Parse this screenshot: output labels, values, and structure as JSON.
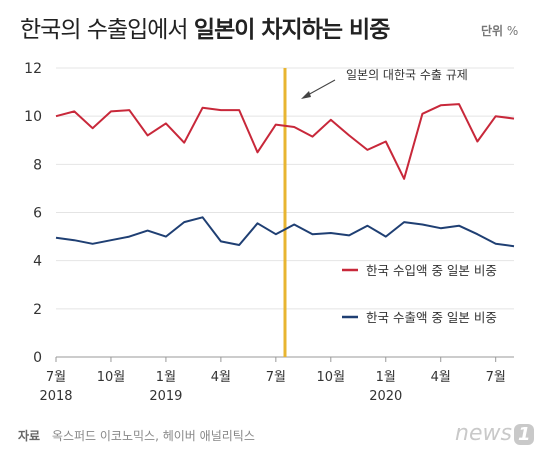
{
  "header": {
    "title_prefix": "한국의 수출입에서",
    "title_emphasis": "일본이 차지하는 비중",
    "unit_label": "단위",
    "unit_value": "%"
  },
  "footer": {
    "source_label": "자료",
    "source_text": "옥스퍼드 이코노믹스, 헤이버 애널리틱스",
    "logo_text": "news",
    "logo_badge": "1"
  },
  "chart_data": {
    "type": "line",
    "x": [
      "2018-07",
      "2018-08",
      "2018-09",
      "2018-10",
      "2018-11",
      "2018-12",
      "2019-01",
      "2019-02",
      "2019-03",
      "2019-04",
      "2019-05",
      "2019-06",
      "2019-07",
      "2019-08",
      "2019-09",
      "2019-10",
      "2019-11",
      "2019-12",
      "2020-01",
      "2020-02",
      "2020-03",
      "2020-04",
      "2020-05",
      "2020-06",
      "2020-07",
      "2020-08"
    ],
    "series": [
      {
        "name": "한국 수입액 중 일본 비중",
        "color": "#c8283a",
        "values": [
          10.0,
          10.2,
          9.5,
          10.2,
          10.25,
          9.2,
          9.7,
          8.9,
          10.35,
          10.25,
          10.25,
          8.5,
          9.65,
          9.55,
          9.15,
          9.85,
          9.2,
          8.6,
          8.95,
          7.4,
          10.1,
          10.45,
          10.5,
          8.95,
          10.0,
          9.9
        ]
      },
      {
        "name": "한국 수출액 중 일본 비중",
        "color": "#1f3f73",
        "values": [
          4.95,
          4.85,
          4.7,
          4.85,
          5.0,
          5.25,
          5.0,
          5.6,
          5.8,
          4.8,
          4.65,
          5.55,
          5.1,
          5.5,
          5.1,
          5.15,
          5.05,
          5.45,
          5.0,
          5.6,
          5.5,
          5.35,
          5.45,
          5.1,
          4.7,
          4.6
        ]
      }
    ],
    "y_ticks": [
      "0",
      "2",
      "4",
      "6",
      "8",
      "10",
      "12"
    ],
    "ylim": [
      0,
      12
    ],
    "x_tick_labels": [
      {
        "month": "7월",
        "year": "2018",
        "index": 0
      },
      {
        "month": "10월",
        "year": "",
        "index": 3
      },
      {
        "month": "1월",
        "year": "2019",
        "index": 6
      },
      {
        "month": "4월",
        "year": "",
        "index": 9
      },
      {
        "month": "7월",
        "year": "",
        "index": 12
      },
      {
        "month": "10월",
        "year": "",
        "index": 15
      },
      {
        "month": "1월",
        "year": "2020",
        "index": 18
      },
      {
        "month": "4월",
        "year": "",
        "index": 21
      },
      {
        "month": "7월",
        "year": "",
        "index": 24
      }
    ],
    "marker": {
      "index": 12.5,
      "label": "일본의 대한국 수출 규제",
      "color": "#e8b531"
    },
    "grid": "horizontal",
    "legend_position": "right"
  }
}
